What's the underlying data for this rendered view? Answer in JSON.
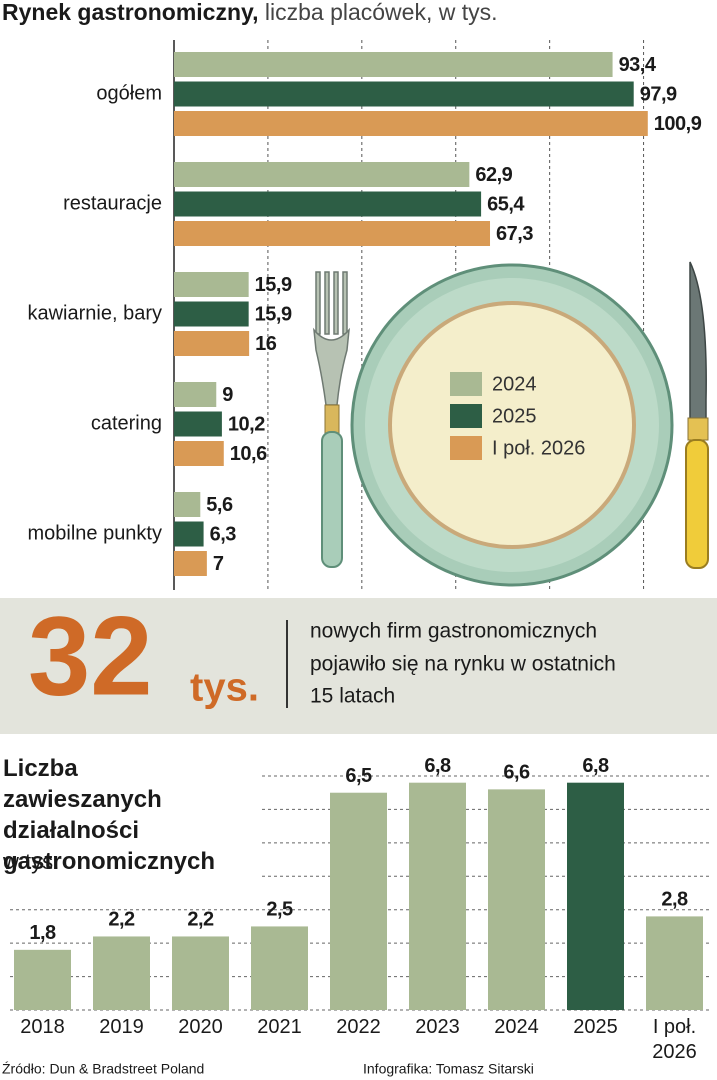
{
  "chart_data": [
    {
      "type": "barh",
      "title": "Rynek gastronomiczny,",
      "subtitle": "liczba placówek, w tys.",
      "categories": [
        "ogółem",
        "restauracje",
        "kawiarnie, bary",
        "catering",
        "mobilne punkty"
      ],
      "series": [
        {
          "name": "2024",
          "color": "#a9b993",
          "values": [
            93.4,
            62.9,
            15.9,
            9,
            5.6
          ],
          "value_labels": [
            "93,4",
            "62,9",
            "15,9",
            "9",
            "5,6"
          ]
        },
        {
          "name": "2025",
          "color": "#2d5e45",
          "values": [
            97.9,
            65.4,
            15.9,
            10.2,
            6.3
          ],
          "value_labels": [
            "97,9",
            "65,4",
            "15,9",
            "10,2",
            "6,3"
          ]
        },
        {
          "name": "I poł. 2026",
          "color": "#d99a55",
          "values": [
            100.9,
            67.3,
            16,
            10.6,
            7
          ],
          "value_labels": [
            "100,9",
            "67,3",
            "16",
            "10,6",
            "7"
          ]
        }
      ],
      "xlim": [
        0,
        115
      ],
      "xticks": [
        0,
        20,
        40,
        60,
        80,
        100
      ],
      "grid": true
    },
    {
      "type": "bar",
      "title": "Liczba zawieszanych działalności gastronomicznych",
      "subtitle": "w tys.",
      "categories": [
        "2018",
        "2019",
        "2020",
        "2021",
        "2022",
        "2023",
        "2024",
        "2025",
        "I poł. 2026"
      ],
      "values": [
        1.8,
        2.2,
        2.2,
        2.5,
        6.5,
        6.8,
        6.6,
        6.8,
        2.8
      ],
      "value_labels": [
        "1,8",
        "2,2",
        "2,2",
        "2,5",
        "6,5",
        "6,8",
        "6,6",
        "6,8",
        "2,8"
      ],
      "colors": [
        "#a9b993",
        "#a9b993",
        "#a9b993",
        "#a9b993",
        "#a9b993",
        "#a9b993",
        "#a9b993",
        "#2d5e45",
        "#a9b993"
      ],
      "ylim": [
        0,
        7
      ],
      "yticks": [
        0,
        1,
        2,
        3,
        4,
        5,
        6,
        7
      ],
      "grid": true
    }
  ],
  "callout": {
    "number": "32",
    "unit": "tys.",
    "lines": [
      "nowych firm gastronomicznych",
      "pojawiło się na rynku w ostatnich",
      "15 latach"
    ]
  },
  "footer": {
    "source": "Źródło: Dun & Bradstreet Poland",
    "credit": "Infografika: Tomasz Sitarski"
  }
}
